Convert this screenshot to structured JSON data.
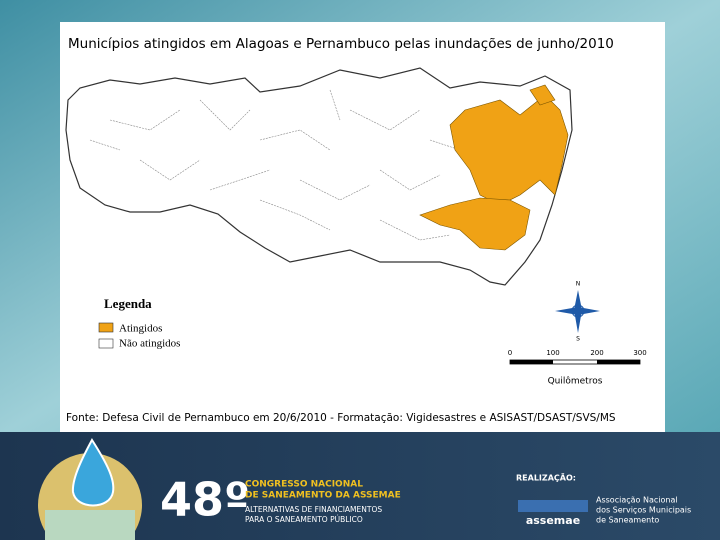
{
  "map": {
    "title": "Municípios atingidos  em Alagoas e Pernambuco pelas  inundações de junho/2010",
    "legend": {
      "title": "Legenda",
      "items": [
        "Atingidos",
        "Não atingidos"
      ]
    },
    "scale": {
      "labels": [
        "0",
        "100",
        "200",
        "300"
      ],
      "unit": "Quilômetros"
    },
    "compass": [
      "N",
      "S"
    ],
    "source": "Fonte: Defesa Civil de Pernambuco em  20/6/2010 - Formatação: Vigidesastres e ASISAST/DSAST/SVS/MS"
  },
  "footer": {
    "edition": "48º",
    "event": [
      "CONGRESSO NACIONAL",
      "DE SANEAMENTO DA ASSEMAE"
    ],
    "theme": [
      "ALTERNATIVAS DE FINANCIAMENTOS",
      "PARA O SANEAMENTO PÚBLICO"
    ],
    "organizer_label": "REALIZAÇÃO:",
    "organizer_logo": "assemae",
    "organizer_name": [
      "Associação Nacional",
      "dos Serviços Municipais",
      "de Saneamento"
    ]
  }
}
